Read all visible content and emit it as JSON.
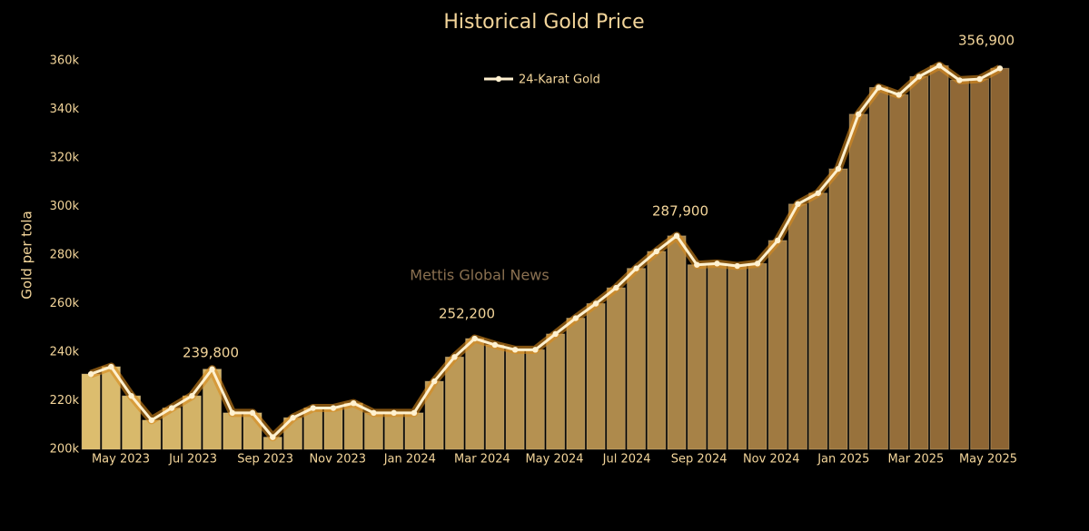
{
  "chart_data": {
    "type": "bar-line",
    "title": "Historical Gold Price",
    "y_label": "Gold per tola",
    "watermark": "Mettis Global News",
    "x_labels": [
      "May 2023",
      "Jul 2023",
      "Sep 2023",
      "Nov 2023",
      "Jan 2024",
      "Mar 2024",
      "May 2024",
      "Jul 2024",
      "Sep 2024",
      "Nov 2024",
      "Jan 2025",
      "Mar 2025",
      "May 2025"
    ],
    "series": [
      {
        "name": "24-Karat Gold",
        "color": "#fff1d0",
        "glow": "#d98a1c",
        "bar_colors": [
          "#dcbd6e",
          "#8c6433"
        ],
        "values": [
          231000,
          234000,
          222000,
          212000,
          217000,
          222000,
          233000,
          215000,
          215000,
          205000,
          213000,
          217000,
          217000,
          219000,
          215000,
          215000,
          215000,
          228000,
          238000,
          245600,
          243000,
          241000,
          241000,
          247500,
          254000,
          260000,
          266500,
          274500,
          281500,
          287900,
          276000,
          276500,
          275500,
          276500,
          286000,
          301000,
          305500,
          315500,
          338000,
          349000,
          346000,
          353500,
          358000,
          352000,
          352500,
          356900
        ]
      }
    ],
    "annotations": [
      "239,800",
      "252,200",
      "287,900",
      "356,900"
    ],
    "ylim": [
      200000,
      360000
    ],
    "yticks": [
      {
        "value": 200000,
        "label": "200k"
      },
      {
        "value": 220000,
        "label": "220k"
      },
      {
        "value": 240000,
        "label": "240k"
      },
      {
        "value": 260000,
        "label": "260k"
      },
      {
        "value": 280000,
        "label": "280k"
      },
      {
        "value": 300000,
        "label": "300k"
      },
      {
        "value": 320000,
        "label": "320k"
      },
      {
        "value": 340000,
        "label": "340k"
      },
      {
        "value": 360000,
        "label": "360k"
      }
    ]
  }
}
